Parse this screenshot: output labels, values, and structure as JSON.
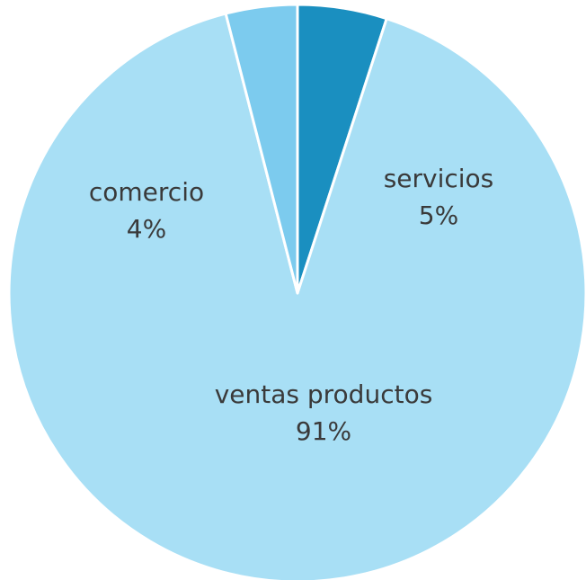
{
  "chart_data": {
    "type": "pie",
    "categories": [
      "servicios",
      "ventas productos",
      "comercio"
    ],
    "values": [
      5,
      91,
      4
    ],
    "value_labels": [
      "5%",
      "91%",
      "4%"
    ],
    "colors": [
      "#1a8fc0",
      "#a8dff5",
      "#7ccbee"
    ]
  }
}
